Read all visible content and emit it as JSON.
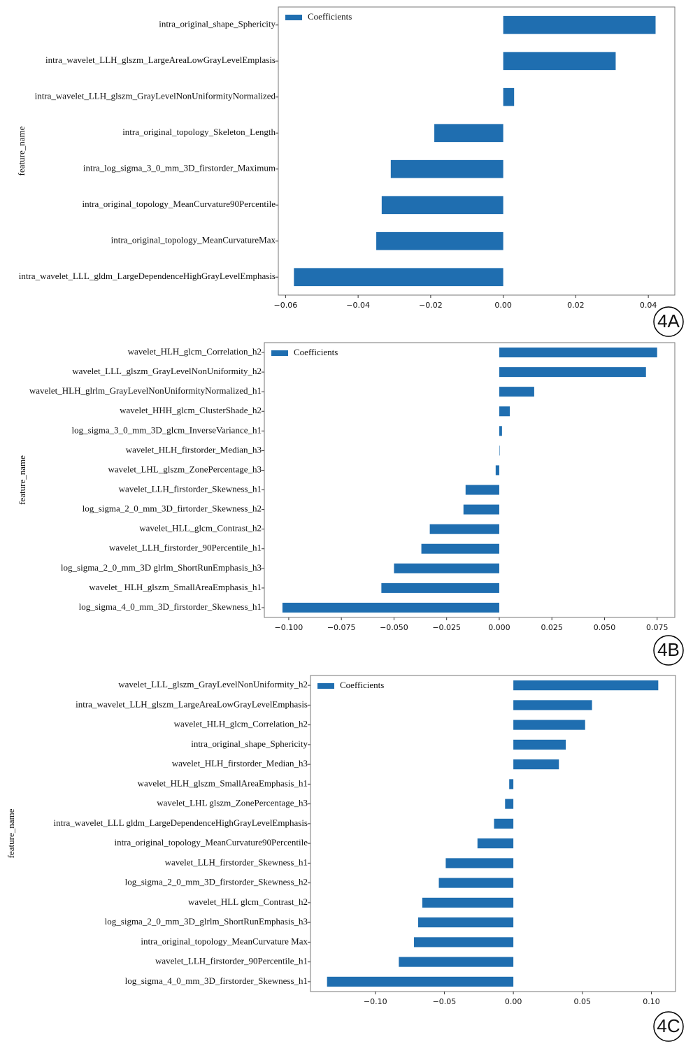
{
  "chart_data": [
    {
      "type": "barh",
      "panel_label": "4A",
      "ylabel": "feature_name",
      "legend": "upper left",
      "categories": [
        "intra_original_shape_Sphericity",
        "intra_wavelet_LLH_glszm_LargeAreaLowGrayLevelEmplasis",
        "intra_wavelet_LLH_glszm_GrayLevelNonUniformityNormalized",
        "intra_original_topology_Skeleton_Length",
        "intra_log_sigma_3_0_mm_3D_firstorder_Maximum",
        "intra_original_topology_MeanCurvature90Percentile",
        "intra_original_topology_MeanCurvatureMax",
        "intra_wavelet_LLL_gldm_LargeDependenceHighGrayLevelEmphasis"
      ],
      "series": [
        {
          "name": "Coefficients",
          "color": "#1f6eb0",
          "values": [
            0.042,
            0.031,
            0.003,
            -0.019,
            -0.031,
            -0.0335,
            -0.035,
            -0.0577
          ]
        }
      ],
      "xlim": [
        -0.062,
        0.0473
      ],
      "xticks": [
        {
          "value": -0.06,
          "label": "−0.06"
        },
        {
          "value": -0.04,
          "label": "−0.04"
        },
        {
          "value": -0.02,
          "label": "−0.02"
        },
        {
          "value": 0,
          "label": "0.00"
        },
        0.02,
        0.04
      ]
    },
    {
      "type": "barh",
      "panel_label": "4B",
      "ylabel": "feature_name",
      "legend": "upper left",
      "categories": [
        "wavelet_HLH_glcm_Correlation_h2",
        "wavelet_LLL_glszm_GrayLevelNonUniformity_h2",
        "wavelet_HLH_glrlm_GrayLevelNonUniformityNormalized_h1",
        "wavelet_HHH_glcm_ClusterShade_h2",
        "log_sigma_3_0_mm_3D_glcm_InverseVariance_h1",
        "wavelet_HLH_firstorder_Median_h3",
        "wavelet_LHL_glszm_ZonePercentage_h3",
        "wavelet_LLH_firstorder_Skewness_h1",
        "log_sigma_2_0_mm_3D_firtorder_Skewness_h2",
        "wavelet_HLL_glcm_Contrast_h2",
        "wavelet_LLH_firstorder_90Percentile_h1",
        "log_sigma_2_0_mm_3D glrlm_ShortRunEmphasis_h3",
        "wavelet_ HLH_glszm_SmallAreaEmphasis_h1",
        "log_sigma_4_0_mm_3D_firstorder_Skewness_h1"
      ],
      "series": [
        {
          "name": "Coefficients",
          "color": "#1f6eb0",
          "values": [
            0.075,
            0.0697,
            0.0166,
            0.005,
            0.0013,
            0.0002,
            -0.0017,
            -0.016,
            -0.017,
            -0.033,
            -0.037,
            -0.05,
            -0.056,
            -0.103
          ]
        }
      ],
      "xlim": [
        -0.1116,
        0.0834
      ],
      "xticks": [
        {
          "value": -0.1,
          "label": "−0.100"
        },
        {
          "value": -0.075,
          "label": "−0.075"
        },
        {
          "value": -0.05,
          "label": "−0.050"
        },
        {
          "value": -0.025,
          "label": "−0.025"
        },
        {
          "value": 0,
          "label": "0.000"
        },
        0.025,
        {
          "value": 0.05,
          "label": "0.050"
        },
        0.075
      ]
    },
    {
      "type": "barh",
      "panel_label": "4C",
      "ylabel": "feature_name",
      "legend": "upper left",
      "categories": [
        "wavelet_LLL_glszm_GrayLevelNonUniformity_h2",
        "intra_wavelet_LLH_glszm_LargeAreaLowGrayLevelEmphasis",
        "wavelet_HLH_glcm_Correlation_h2",
        "intra_original_shape_Sphericity",
        "wavelet_HLH_firstorder_Median_h3",
        "wavelet_HLH_glszm_SmallAreaEmphasis_h1",
        "wavelet_LHL glszm_ZonePercentage_h3",
        "intra_wavelet_LLL gldm_LargeDependenceHighGrayLevelEmphasis",
        "intra_original_topology_MeanCurvature90Percentile",
        "wavelet_LLH_firstorder_Skewness_h1",
        "log_sigma_2_0_mm_3D_firstorder_Skewness_h2",
        "wavelet_HLL glcm_Contrast_h2",
        "log_sigma_2_0_mm_3D_glrlm_ShortRunEmphasis_h3",
        "intra_original_topology_MeanCurvature Max",
        "wavelet_LLH_firstorder_90Percentile_h1",
        "log_sigma_4_0_mm_3D_firstorder_Skewness_h1"
      ],
      "series": [
        {
          "name": "Coefficients",
          "color": "#1f6eb0",
          "values": [
            0.105,
            0.057,
            0.052,
            0.038,
            0.033,
            -0.003,
            -0.006,
            -0.014,
            -0.026,
            -0.049,
            -0.054,
            -0.066,
            -0.069,
            -0.072,
            -0.083,
            -0.135
          ]
        }
      ],
      "xlim": [
        -0.147,
        0.1175
      ],
      "xticks": [
        {
          "value": -0.1,
          "label": "−0.10"
        },
        {
          "value": -0.05,
          "label": "−0.05"
        },
        {
          "value": 0,
          "label": "0.00"
        },
        0.05,
        {
          "value": 0.1,
          "label": "0.10"
        }
      ]
    }
  ]
}
